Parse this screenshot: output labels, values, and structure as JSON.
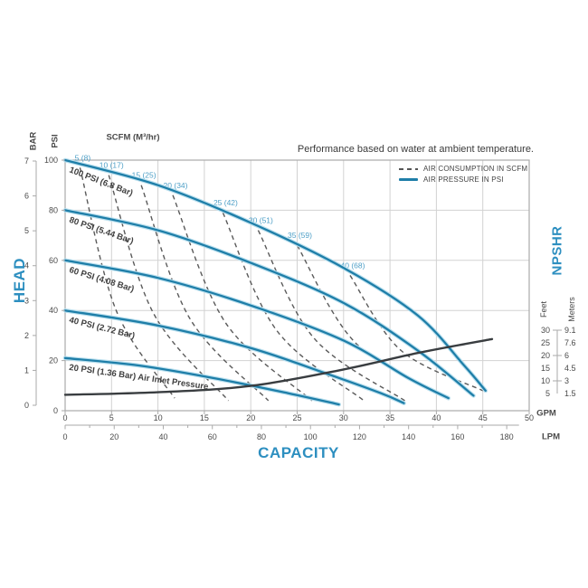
{
  "chart_data": {
    "type": "line",
    "title": "Performance based on water at ambient temperature.",
    "scfm_header": "SCFM (M³/hr)",
    "x_axis": {
      "label": "CAPACITY",
      "gpm_unit": "GPM",
      "lpm_unit": "LPM",
      "gpm_ticks": [
        0,
        5,
        10,
        15,
        20,
        25,
        30,
        35,
        40,
        45,
        50
      ],
      "lpm_ticks": [
        0,
        20,
        40,
        60,
        80,
        100,
        120,
        140,
        160,
        180
      ],
      "gpm_range": [
        0,
        50
      ]
    },
    "y_axis_left": {
      "label": "HEAD",
      "bar_unit": "BAR",
      "psi_unit": "PSI",
      "bar_ticks": [
        0,
        1,
        2,
        3,
        4,
        5,
        6,
        7
      ],
      "psi_ticks": [
        0,
        20,
        40,
        60,
        80,
        100
      ],
      "psi_range": [
        0,
        100
      ]
    },
    "y_axis_right": {
      "label": "NPSHR",
      "feet_unit": "Feet",
      "meters_unit": "Meters",
      "feet_ticks": [
        30,
        25,
        20,
        15,
        10,
        5
      ],
      "meters_ticks": [
        "9.1",
        "7.6",
        "6",
        "4.5",
        "3",
        "1.5"
      ]
    },
    "legend": [
      {
        "label": "AIR CONSUMPTION IN SCFM",
        "style": "dashed"
      },
      {
        "label": "AIR PRESSURE IN PSI",
        "style": "solid"
      }
    ],
    "grid": {
      "x_step_gpm": 5,
      "y_step_psi": 20
    },
    "pressure_curves": [
      {
        "label": "100 PSI (6.8 Bar)",
        "points_gpm_psi": [
          [
            0,
            100
          ],
          [
            10,
            90
          ],
          [
            20,
            75
          ],
          [
            30,
            57
          ],
          [
            38,
            38
          ],
          [
            43,
            18
          ],
          [
            45.3,
            8
          ]
        ]
      },
      {
        "label": "80 PSI (5.44 Bar)",
        "points_gpm_psi": [
          [
            0,
            80
          ],
          [
            10,
            72
          ],
          [
            20,
            59
          ],
          [
            30,
            43
          ],
          [
            38,
            24
          ],
          [
            44,
            6
          ]
        ]
      },
      {
        "label": "60 PSI (4.08 Bar)",
        "points_gpm_psi": [
          [
            0,
            60
          ],
          [
            10,
            53
          ],
          [
            20,
            42
          ],
          [
            30,
            28
          ],
          [
            37,
            13
          ],
          [
            41.3,
            5
          ]
        ]
      },
      {
        "label": "40 PSI (2.72 Bar)",
        "points_gpm_psi": [
          [
            0,
            40
          ],
          [
            10,
            34
          ],
          [
            20,
            25
          ],
          [
            28,
            15
          ],
          [
            34,
            7
          ],
          [
            36.5,
            3
          ]
        ]
      },
      {
        "label": "20 PSI (1.36 Bar) Air Inlet Pressure",
        "points_gpm_psi": [
          [
            0,
            21
          ],
          [
            8,
            18
          ],
          [
            16,
            13
          ],
          [
            24,
            7
          ],
          [
            29.5,
            2.5
          ]
        ]
      }
    ],
    "consumption_curves": [
      {
        "label": "5 (8)",
        "points_gpm_psi": [
          [
            1.6,
            97
          ],
          [
            5.5,
            40
          ],
          [
            11.8,
            5
          ]
        ]
      },
      {
        "label": "10 (17)",
        "points_gpm_psi": [
          [
            4.7,
            94
          ],
          [
            9.5,
            39
          ],
          [
            17.6,
            4
          ]
        ]
      },
      {
        "label": "15 (25)",
        "points_gpm_psi": [
          [
            8.2,
            90
          ],
          [
            13.4,
            37
          ],
          [
            21.9,
            4
          ]
        ]
      },
      {
        "label": "20 (34)",
        "points_gpm_psi": [
          [
            11.6,
            86
          ],
          [
            17.3,
            35
          ],
          [
            26.6,
            4
          ]
        ]
      },
      {
        "label": "25 (42)",
        "points_gpm_psi": [
          [
            17,
            79
          ],
          [
            22.8,
            32
          ],
          [
            32.2,
            4
          ]
        ]
      },
      {
        "label": "30 (51)",
        "points_gpm_psi": [
          [
            20.8,
            72
          ],
          [
            26.8,
            29
          ],
          [
            36.6,
            4
          ]
        ]
      },
      {
        "label": "35 (59)",
        "points_gpm_psi": [
          [
            25,
            66
          ],
          [
            31.3,
            27
          ],
          [
            41.3,
            5
          ]
        ]
      },
      {
        "label": "40 (68)",
        "points_gpm_psi": [
          [
            30.7,
            54
          ],
          [
            36.2,
            24
          ],
          [
            45,
            8
          ]
        ]
      }
    ],
    "npshr_curve": {
      "points_gpm_feet": [
        [
          0,
          4.5
        ],
        [
          10,
          5.5
        ],
        [
          20,
          8
        ],
        [
          30,
          14.5
        ],
        [
          38,
          21
        ],
        [
          46,
          26.5
        ]
      ]
    },
    "colors": {
      "pressure_curve": "#1e7ea8",
      "pressure_casing": "#b9dfee",
      "consumption_curve": "#5a5a5a",
      "npshr_curve": "#393d40",
      "blue_label": "#2d8fc0",
      "scfm_value_label": "#4d9fc7",
      "grid": "#d2d2d2",
      "border": "#aaaaaa",
      "tick_text": "#4a4a4a",
      "curve_label_text": "#3f3f3f"
    }
  }
}
